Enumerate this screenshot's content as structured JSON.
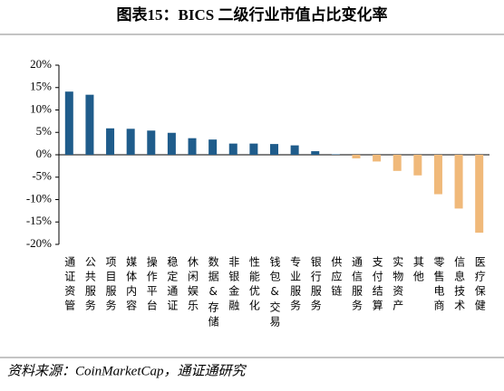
{
  "chart_data": {
    "type": "bar",
    "title": "图表15：BICS 二级行业市值占比变化率",
    "source": "资料来源：CoinMarketCap，通证通研究",
    "categories": [
      "通证资管",
      "公共服务",
      "项目服务",
      "媒体内容",
      "操作平台",
      "稳定通证",
      "休闲娱乐",
      "数据&存储",
      "非银金融",
      "性能优化",
      "钱包&交易",
      "专业服务",
      "银行服务",
      "供应链",
      "通信服务",
      "支付结算",
      "实物资产",
      "其他",
      "零售电商",
      "信息技术",
      "医疗保健"
    ],
    "values": [
      14.1,
      13.4,
      5.9,
      5.8,
      5.4,
      4.9,
      3.7,
      3.4,
      2.5,
      2.5,
      2.4,
      2.1,
      0.8,
      0.1,
      -0.8,
      -1.5,
      -3.6,
      -4.6,
      -8.8,
      -12.0,
      -17.4
    ],
    "color_positive": "#1f5c8b",
    "color_negative": "#f0b97a",
    "ylim": [
      -20,
      20
    ],
    "yticks": [
      {
        "value": -20,
        "label": "-20%"
      },
      {
        "value": -15,
        "label": "-15%"
      },
      {
        "value": -10,
        "label": "-10%"
      },
      {
        "value": -5,
        "label": "-5%"
      },
      {
        "value": 0,
        "label": "0%"
      },
      {
        "value": 5,
        "label": "5%"
      },
      {
        "value": 10,
        "label": "10%"
      },
      {
        "value": 15,
        "label": "15%"
      },
      {
        "value": 20,
        "label": "20%"
      }
    ],
    "grid": false
  }
}
